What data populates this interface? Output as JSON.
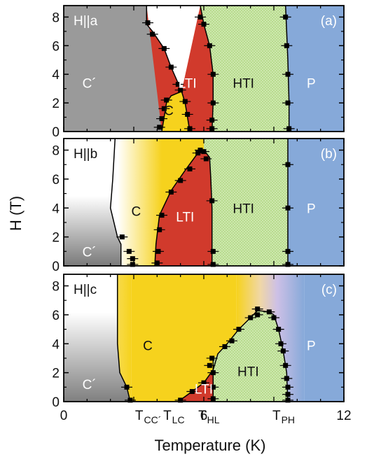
{
  "chart_data": {
    "type": "phase-diagram",
    "xlabel": "Temperature (K)",
    "ylabel": "H (T)",
    "xlim": [
      0,
      12
    ],
    "ylim": [
      0,
      8.8
    ],
    "x_tick_labels": [
      {
        "x": 0,
        "text": "0"
      },
      {
        "x": 6,
        "text": "6"
      },
      {
        "x": 12,
        "text": "12"
      }
    ],
    "x_special_ticks": [
      {
        "x": 3.8,
        "main": "T",
        "sub": "CC´"
      },
      {
        "x": 4.9,
        "main": "T",
        "sub": "LC"
      },
      {
        "x": 6.4,
        "main": "T",
        "sub": "HL"
      },
      {
        "x": 9.6,
        "main": "T",
        "sub": "PH"
      }
    ],
    "y_ticks": [
      0,
      2,
      4,
      6,
      8
    ],
    "colors": {
      "C_prime": "#9a9a9a",
      "C": "#f6d21d",
      "LTI": "#d13a2c",
      "HTI": "#b8dc8e",
      "HTI_dots": "#e8f5d6",
      "P": "#86a9d9",
      "boundary": "#000000"
    },
    "panels": [
      {
        "tag": "(a)",
        "field": "H||a",
        "regions": [
          {
            "name": "C´",
            "at": [
              1.1,
              3.4
            ],
            "color": "#ffffff"
          },
          {
            "name": "C",
            "at": [
              4.5,
              1.5
            ],
            "color": "#111111"
          },
          {
            "name": "LTI",
            "at": [
              5.3,
              3.4
            ],
            "color": "#ffffff"
          },
          {
            "name": "HTI",
            "at": [
              7.7,
              3.4
            ],
            "color": "#111111"
          },
          {
            "name": "P",
            "at": [
              10.6,
              3.4
            ],
            "color": "#ffffff"
          }
        ],
        "boundaries": {
          "C_prime_LTI": [
            [
              3.55,
              8.8
            ],
            [
              3.55,
              7.5
            ],
            [
              3.8,
              7.0
            ],
            [
              4.3,
              5.8
            ],
            [
              4.6,
              4.5
            ],
            [
              5.0,
              3.0
            ],
            [
              5.05,
              2.8
            ]
          ],
          "C_pocket": [
            [
              4.2,
              0
            ],
            [
              4.3,
              1.0
            ],
            [
              4.4,
              2.0
            ],
            [
              4.6,
              2.5
            ],
            [
              5.05,
              2.8
            ],
            [
              5.2,
              2.0
            ],
            [
              5.3,
              1.0
            ],
            [
              5.4,
              0
            ]
          ],
          "LTI_HTI": [
            [
              6.35,
              0
            ],
            [
              6.4,
              2.0
            ],
            [
              6.4,
              4.0
            ],
            [
              6.25,
              6.0
            ],
            [
              6.0,
              7.5
            ],
            [
              5.85,
              8.8
            ]
          ],
          "HTI_P": [
            [
              9.5,
              8.8
            ],
            [
              9.55,
              7.0
            ],
            [
              9.6,
              5.0
            ],
            [
              9.65,
              2.0
            ],
            [
              9.65,
              0
            ]
          ]
        },
        "points": [
          [
            3.6,
            7.6
          ],
          [
            3.8,
            6.8
          ],
          [
            4.3,
            5.8
          ],
          [
            4.6,
            4.5
          ],
          [
            4.9,
            3.3
          ],
          [
            5.0,
            2.9
          ],
          [
            4.4,
            2.2
          ],
          [
            4.3,
            1.6
          ],
          [
            4.2,
            0.9
          ],
          [
            4.1,
            0.3
          ],
          [
            5.2,
            2.1
          ],
          [
            5.3,
            1.2
          ],
          [
            5.4,
            0.2
          ],
          [
            6.25,
            6.0
          ],
          [
            6.4,
            4.0
          ],
          [
            6.4,
            2.0
          ],
          [
            6.35,
            0.8
          ],
          [
            6.35,
            0.2
          ],
          [
            6.0,
            7.5
          ],
          [
            5.85,
            8.0
          ],
          [
            9.5,
            8.0
          ],
          [
            9.55,
            6.0
          ],
          [
            9.6,
            4.0
          ],
          [
            9.6,
            2.0
          ],
          [
            9.65,
            0.2
          ]
        ]
      },
      {
        "tag": "(b)",
        "field": "H||b",
        "regions": [
          {
            "name": "C´",
            "at": [
              1.1,
              1.0
            ],
            "color": "#ffffff"
          },
          {
            "name": "C",
            "at": [
              3.1,
              3.8
            ],
            "color": "#111111"
          },
          {
            "name": "LTI",
            "at": [
              5.2,
              3.4
            ],
            "color": "#ffffff"
          },
          {
            "name": "HTI",
            "at": [
              7.7,
              4.0
            ],
            "color": "#111111"
          },
          {
            "name": "P",
            "at": [
              10.6,
              4.0
            ],
            "color": "#ffffff"
          }
        ],
        "boundaries": {
          "C_prime_edge": [
            [
              2.2,
              8.8
            ],
            [
              2.1,
              6.0
            ],
            [
              2.0,
              4.0
            ],
            [
              2.3,
              2.0
            ],
            [
              2.45,
              1.5
            ],
            [
              2.45,
              0
            ]
          ],
          "C_LTI": [
            [
              3.9,
              0
            ],
            [
              3.95,
              1.5
            ],
            [
              4.1,
              3.5
            ],
            [
              4.6,
              5.2
            ],
            [
              5.2,
              6.6
            ],
            [
              5.7,
              7.7
            ],
            [
              6.0,
              8.0
            ],
            [
              6.25,
              7.5
            ],
            [
              6.3,
              6.0
            ],
            [
              6.35,
              4.0
            ],
            [
              6.35,
              2.0
            ],
            [
              6.35,
              0
            ]
          ],
          "HTI_P": [
            [
              9.6,
              8.8
            ],
            [
              9.6,
              0
            ]
          ]
        },
        "points": [
          [
            2.5,
            2.0
          ],
          [
            2.8,
            1.0
          ],
          [
            2.95,
            0.5
          ],
          [
            2.95,
            0.1
          ],
          [
            4.0,
            0.2
          ],
          [
            4.05,
            1.0
          ],
          [
            4.1,
            2.5
          ],
          [
            4.2,
            3.5
          ],
          [
            4.6,
            5.1
          ],
          [
            5.0,
            5.9
          ],
          [
            5.4,
            6.7
          ],
          [
            5.75,
            7.8
          ],
          [
            5.85,
            8.0
          ],
          [
            6.0,
            7.9
          ],
          [
            6.1,
            7.4
          ],
          [
            6.35,
            4.5
          ],
          [
            6.4,
            1.0
          ],
          [
            6.4,
            0.1
          ],
          [
            9.6,
            7.0
          ],
          [
            9.6,
            4.0
          ],
          [
            9.6,
            1.0
          ],
          [
            9.6,
            0.1
          ]
        ]
      },
      {
        "tag": "(c)",
        "field": "H||c",
        "regions": [
          {
            "name": "C´",
            "at": [
              1.1,
              1.2
            ],
            "color": "#ffffff"
          },
          {
            "name": "C",
            "at": [
              3.6,
              3.9
            ],
            "color": "#111111"
          },
          {
            "name": "LTI",
            "at": [
              6.0,
              0.9
            ],
            "color": "#ffffff"
          },
          {
            "name": "HTI",
            "at": [
              7.9,
              2.1
            ],
            "color": "#111111"
          },
          {
            "name": "P",
            "at": [
              10.6,
              3.9
            ],
            "color": "#ffffff"
          }
        ],
        "boundaries": {
          "C_prime_edge": [
            [
              2.3,
              8.8
            ],
            [
              2.3,
              4.0
            ],
            [
              2.4,
              2.0
            ],
            [
              2.7,
              1.0
            ],
            [
              2.85,
              0
            ]
          ],
          "C_LTI": [
            [
              4.9,
              0
            ],
            [
              5.5,
              0.7
            ],
            [
              6.0,
              1.3
            ],
            [
              6.4,
              2.2
            ],
            [
              6.6,
              3.3
            ],
            [
              7.0,
              4.0
            ],
            [
              7.5,
              5.0
            ],
            [
              8.0,
              5.8
            ],
            [
              8.3,
              6.3
            ],
            [
              8.8,
              6.2
            ],
            [
              9.0,
              6.0
            ]
          ],
          "LTI_HTI": [
            [
              6.4,
              0
            ],
            [
              6.4,
              2.9
            ]
          ],
          "HTI_P": [
            [
              9.0,
              6.0
            ],
            [
              9.2,
              5.0
            ],
            [
              9.4,
              3.5
            ],
            [
              9.55,
              2.0
            ],
            [
              9.6,
              0
            ]
          ]
        },
        "points": [
          [
            2.7,
            1.0
          ],
          [
            2.85,
            0.1
          ],
          [
            5.0,
            0.1
          ],
          [
            5.5,
            0.7
          ],
          [
            6.0,
            1.3
          ],
          [
            6.25,
            2.5
          ],
          [
            6.35,
            3.0
          ],
          [
            6.9,
            3.8
          ],
          [
            7.2,
            4.2
          ],
          [
            7.5,
            5.0
          ],
          [
            8.0,
            5.8
          ],
          [
            8.3,
            6.4
          ],
          [
            8.3,
            6.0
          ],
          [
            8.8,
            6.2
          ],
          [
            9.0,
            5.8
          ],
          [
            9.2,
            5.0
          ],
          [
            9.3,
            4.0
          ],
          [
            9.4,
            3.5
          ],
          [
            9.5,
            2.5
          ],
          [
            9.55,
            1.6
          ],
          [
            9.6,
            1.0
          ],
          [
            9.6,
            0.5
          ],
          [
            9.6,
            0.1
          ],
          [
            6.4,
            2.0
          ],
          [
            6.4,
            1.0
          ],
          [
            6.4,
            0.2
          ]
        ]
      }
    ]
  }
}
